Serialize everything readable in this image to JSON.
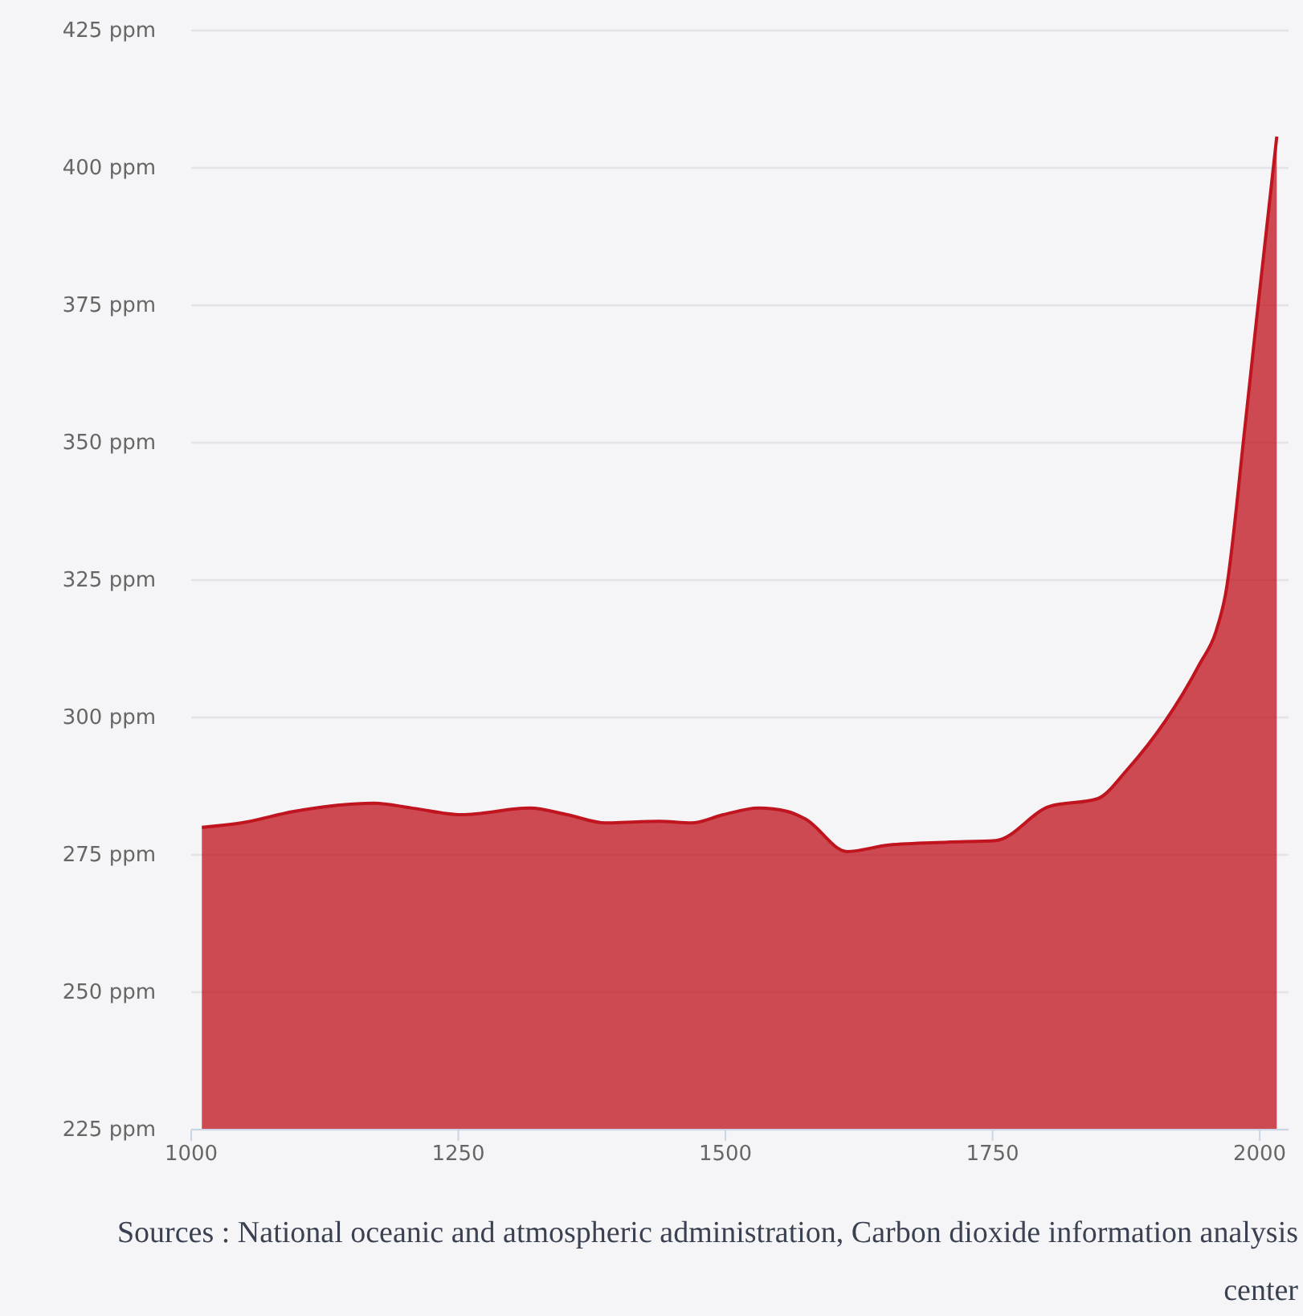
{
  "chart_data": {
    "type": "area",
    "x": [
      1010,
      1047,
      1096,
      1171,
      1207,
      1253,
      1317,
      1352,
      1388,
      1438,
      1468,
      1498,
      1531,
      1558,
      1575,
      1614,
      1653,
      1708,
      1753,
      1803,
      1848,
      1876,
      1944,
      1959,
      1968,
      1986,
      1998,
      2016
    ],
    "series": [
      {
        "color": "#c0141f",
        "values": [
          280.0,
          280.8,
          282.9,
          284.4,
          283.5,
          282.3,
          283.5,
          282.3,
          280.8,
          281.1,
          280.8,
          282.3,
          283.5,
          282.9,
          281.5,
          275.6,
          276.8,
          277.3,
          277.6,
          283.8,
          285.2,
          290.5,
          309.8,
          315.6,
          322.4,
          352.5,
          374.1,
          405.7
        ]
      }
    ],
    "xlim": [
      1000,
      2027
    ],
    "ylim": [
      225,
      425
    ],
    "xticks": [
      1000,
      1250,
      1500,
      1750,
      2000
    ],
    "yticks": [
      {
        "value": 225,
        "label": "225 ppm"
      },
      {
        "value": 250,
        "label": "250 ppm"
      },
      {
        "value": 275,
        "label": "275 ppm"
      },
      {
        "value": 300,
        "label": "300 ppm"
      },
      {
        "value": 325,
        "label": "325 ppm"
      },
      {
        "value": 350,
        "label": "350 ppm"
      },
      {
        "value": 375,
        "label": "375 ppm"
      },
      {
        "value": 400,
        "label": "400 ppm"
      },
      {
        "value": 425,
        "label": "425 ppm"
      }
    ],
    "grid": "y",
    "annotations": [
      "Sources : National oceanic and atmospheric administration, Carbon dioxide information analysis center"
    ]
  }
}
